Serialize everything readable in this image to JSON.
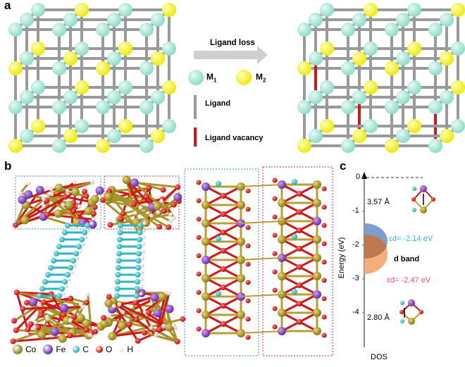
{
  "panels": {
    "a": {
      "letter": "a",
      "arrow_label": "Ligand loss",
      "legend": {
        "m1": "M",
        "m1_sub": "1",
        "m2": "M",
        "m2_sub": "2",
        "ligand": "Ligand",
        "vacancy": "Ligand vacancy"
      }
    },
    "b": {
      "letter": "b",
      "legend": [
        {
          "label": "Co",
          "color": "#9c8a22"
        },
        {
          "label": "Fe",
          "color": "#7a3ab8"
        },
        {
          "label": "C",
          "color": "#2bb5be"
        },
        {
          "label": "O",
          "color": "#e01010"
        },
        {
          "label": "H",
          "color": "#f2dede"
        }
      ]
    },
    "c": {
      "letter": "c",
      "y_axis_label": "Energy (eV)",
      "x_axis_label": "DOS",
      "y_ticks": [
        "0",
        "-1",
        "-2",
        "-3",
        "-4"
      ],
      "distance_top": "3.57 Å",
      "distance_bottom": "2.80 Å",
      "ed_blue": "εd= -2.14 eV",
      "ed_orange": "εd= -2.47 eV",
      "d_band": "d band"
    }
  },
  "colors": {
    "m1": "#8fdcc8",
    "m2": "#ecea10",
    "ligand": "#9a9a9a",
    "vacancy": "#d01818",
    "blue_band": "#7f9ed0",
    "orange_band": "#f5a46a",
    "ed_blue_text": "#35b4dc",
    "ed_orange_text": "#e0508c"
  }
}
